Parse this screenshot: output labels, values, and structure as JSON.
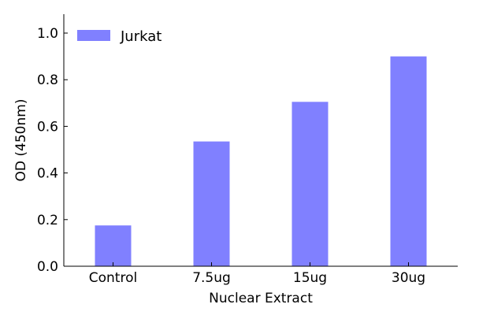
{
  "chart_data": {
    "type": "bar",
    "categories": [
      "Control",
      "7.5ug",
      "15ug",
      "30ug"
    ],
    "series": [
      {
        "name": "Jurkat",
        "values": [
          0.175,
          0.535,
          0.705,
          0.9
        ]
      }
    ],
    "xlabel": "Nuclear Extract",
    "ylabel": "OD (450nm)",
    "ylim": [
      0,
      1.08
    ],
    "yticks": [
      "0.0",
      "0.2",
      "0.4",
      "0.6",
      "0.8",
      "1.0"
    ],
    "grid": false,
    "legend": "top-left",
    "colors": {
      "bar": "#8080ff"
    }
  }
}
